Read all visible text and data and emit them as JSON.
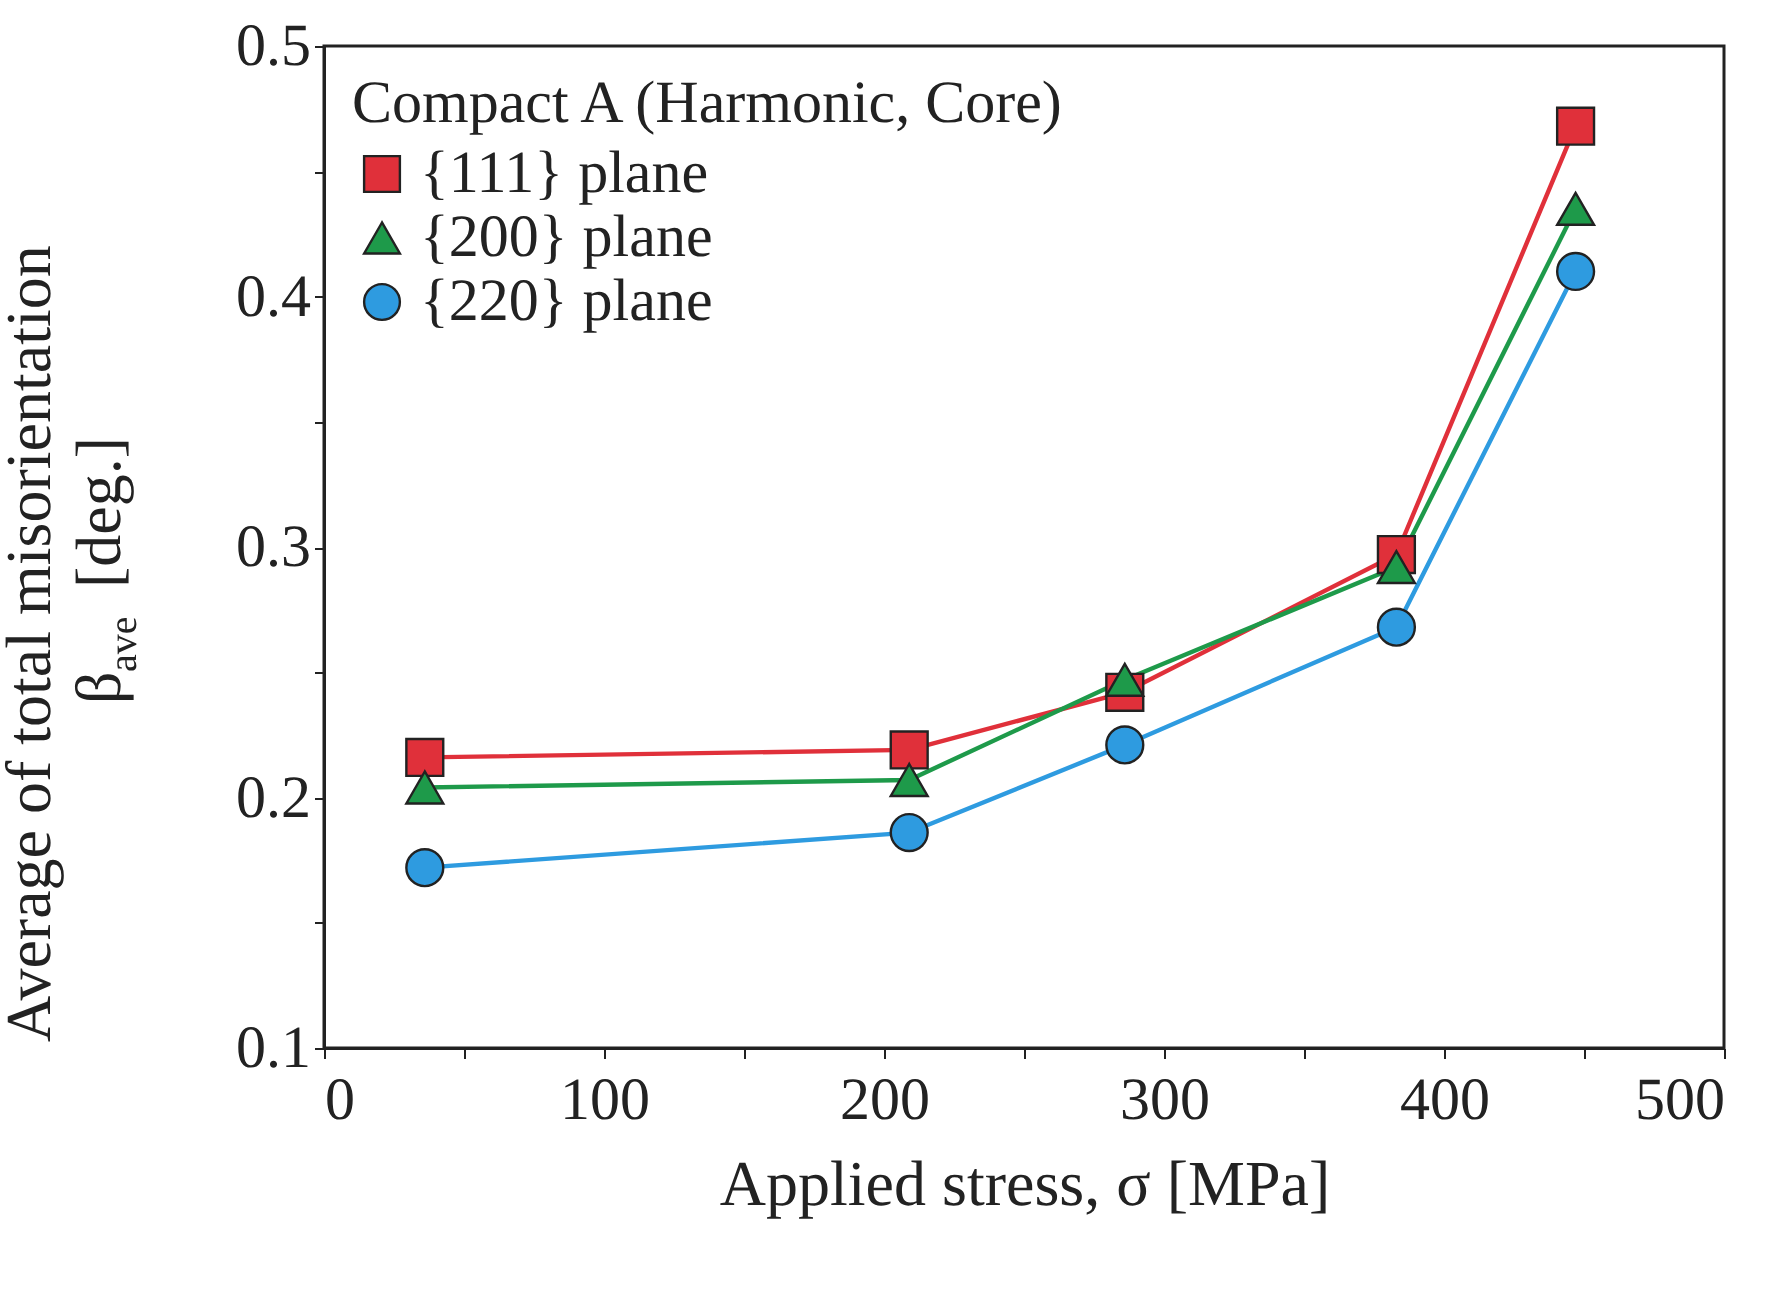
{
  "chart_data": {
    "type": "line",
    "xlabel": "Applied stress, σ [MPa]",
    "ylabel": [
      "Average of total misorientation",
      "β$_{ave}$ [deg.]"
    ],
    "legend_title": "Compact A (Harmonic, Core)",
    "x": [
      36,
      209,
      286,
      383,
      447
    ],
    "series": [
      {
        "name": "{111} plane",
        "color": "#e0303a",
        "marker": "square",
        "values": [
          0.216,
          0.219,
          0.242,
          0.297,
          0.468
        ]
      },
      {
        "name": "{200} plane",
        "color": "#1e9a4a",
        "marker": "triangle",
        "values": [
          0.204,
          0.207,
          0.247,
          0.292,
          0.435
        ]
      },
      {
        "name": "{220} plane",
        "color": "#2e9be0",
        "marker": "circle",
        "values": [
          0.172,
          0.186,
          0.221,
          0.268,
          0.41
        ]
      }
    ],
    "xlim": [
      0,
      500
    ],
    "xticks": [
      0,
      {
        "value": 50,
        "label": null
      },
      100,
      {
        "value": 150,
        "label": null
      },
      200,
      {
        "value": 250,
        "label": null
      },
      300,
      {
        "value": 350,
        "label": null
      },
      400,
      {
        "value": 450,
        "label": null
      },
      500
    ],
    "ylim": [
      0.1,
      0.5
    ],
    "yticks": [
      0.1,
      {
        "value": 0.15,
        "label": null
      },
      0.2,
      {
        "value": 0.25,
        "label": null
      },
      0.3,
      {
        "value": 0.35,
        "label": null
      },
      0.4,
      {
        "value": 0.45,
        "label": null
      },
      0.5
    ],
    "grid": false,
    "legend": "top left",
    "line_style": "solid"
  }
}
